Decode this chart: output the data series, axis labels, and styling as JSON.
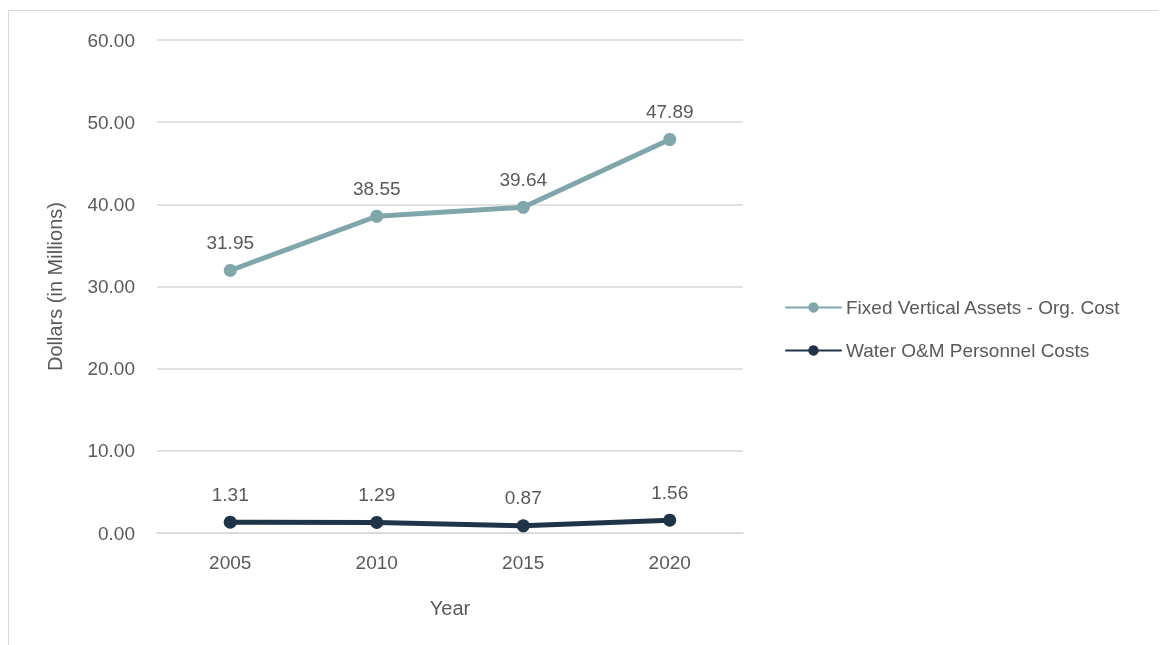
{
  "chart_data": {
    "type": "line",
    "categories": [
      "2005",
      "2010",
      "2015",
      "2020"
    ],
    "xlabel": "Year",
    "ylabel": "Dollars (in Millions)",
    "series": [
      {
        "name": "Fixed Vertical Assets - Org. Cost",
        "color": "#7fa7ab",
        "values": [
          31.95,
          38.55,
          39.64,
          47.89
        ]
      },
      {
        "name": "Water O&M Personnel Costs",
        "color": "#1f3349",
        "values": [
          1.31,
          1.29,
          0.87,
          1.56
        ]
      }
    ],
    "ylim": [
      0,
      60
    ],
    "yticks": [
      {
        "value": 0,
        "label": "0.00"
      },
      {
        "value": 10,
        "label": "10.00"
      },
      {
        "value": 20,
        "label": "20.00"
      },
      {
        "value": 30,
        "label": "30.00"
      },
      {
        "value": 40,
        "label": "40.00"
      },
      {
        "value": 50,
        "label": "50.00"
      },
      {
        "value": 60,
        "label": "60.00"
      }
    ],
    "grid": "y",
    "legend": "right",
    "marker": "circle",
    "line_style": "solid",
    "data_labels": true
  }
}
